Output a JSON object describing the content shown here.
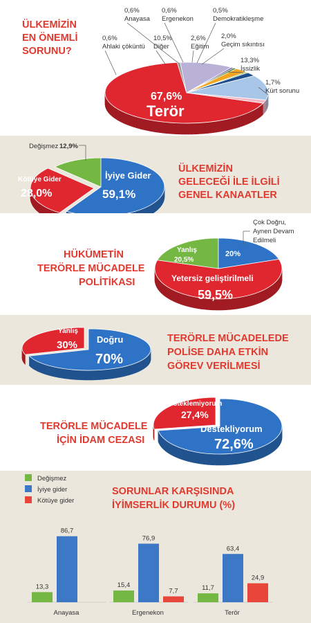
{
  "charts": {
    "c1": {
      "title": [
        "ÜLKEMİZİN",
        "EN ÖNEMLİ",
        "SORUNU?"
      ],
      "chart_data": {
        "type": "pie",
        "slices": [
          {
            "label": "Terör",
            "value": 67.6,
            "display": "67,6%",
            "color": "#e0262f"
          },
          {
            "label": "Ahlaki çöküntü",
            "value": 0.6,
            "display": "0,6%",
            "color": "#9a9a9a"
          },
          {
            "label": "Diğer",
            "value": 10.5,
            "display": "10,5%",
            "color": "#b9b2d6"
          },
          {
            "label": "Anayasa",
            "value": 0.6,
            "display": "0,6%",
            "color": "#7a62a8"
          },
          {
            "label": "Ergenekon",
            "value": 0.6,
            "display": "0,6%",
            "color": "#3a7d2f"
          },
          {
            "label": "Eğitim",
            "value": 2.6,
            "display": "2,6%",
            "color": "#f2a51f"
          },
          {
            "label": "Demokratikleşme",
            "value": 0.5,
            "display": "0,5%",
            "color": "#7bb043"
          },
          {
            "label": "Geçim sıkıntısı",
            "value": 2.0,
            "display": "2,0%",
            "color": "#1f4e8c"
          },
          {
            "label": "İşsizlik",
            "value": 13.3,
            "display": "13,3%",
            "color": "#a8c7e8"
          },
          {
            "label": "Kürt sorunu",
            "value": 1.7,
            "display": "1,7%",
            "color": "#f2b6c4"
          }
        ]
      }
    },
    "c2": {
      "title": [
        "ÜLKEMİZİN",
        "GELECEĞİ İLE İLGİLİ",
        "GENEL KANAATLER"
      ],
      "chart_data": {
        "type": "pie",
        "slices": [
          {
            "label": "İyiye Gider",
            "value": 59.1,
            "display": "59,1%",
            "color": "#2e73c6"
          },
          {
            "label": "Kötüye Gider",
            "value": 28.0,
            "display": "28,0%",
            "color": "#e0262f"
          },
          {
            "label": "Değişmez",
            "value": 12.9,
            "display": "12,9%",
            "color": "#74b843"
          }
        ]
      }
    },
    "c3": {
      "title": [
        "HÜKÜMETİN",
        "TERÖRLE MÜCADELE",
        "POLİTİKASI"
      ],
      "chart_data": {
        "type": "pie",
        "slices": [
          {
            "label": "Yetersiz geliştirilmeli",
            "value": 59.5,
            "display": "59,5%",
            "color": "#e0262f"
          },
          {
            "label": "Yanlış",
            "value": 20.5,
            "display": "20,5%",
            "color": "#74b843"
          },
          {
            "label": "Çok Doğru, Aynen Devam Edilmeli",
            "value": 20,
            "display": "20%",
            "color": "#2e73c6"
          }
        ]
      }
    },
    "c4": {
      "title": [
        "TERÖRLE MÜCADELEDE",
        "POLİSE DAHA ETKİN",
        "GÖREV VERİLMESİ"
      ],
      "chart_data": {
        "type": "pie",
        "slices": [
          {
            "label": "Doğru",
            "value": 70,
            "display": "70%",
            "color": "#2e73c6"
          },
          {
            "label": "Yanlış",
            "value": 30,
            "display": "30%",
            "color": "#e0262f"
          }
        ]
      }
    },
    "c5": {
      "title": [
        "TERÖRLE MÜCADELE",
        "İÇİN İDAM CEZASI"
      ],
      "chart_data": {
        "type": "pie",
        "slices": [
          {
            "label": "Destekliyorum",
            "value": 72.6,
            "display": "72,6%",
            "color": "#2e73c6"
          },
          {
            "label": "Desteklemiyorum",
            "value": 27.4,
            "display": "27,4%",
            "color": "#e0262f"
          }
        ]
      }
    },
    "c6": {
      "title": [
        "SORUNLAR KARŞISINDA",
        "İYİMSERLİK DURUMU (%)"
      ],
      "chart_data": {
        "type": "bar",
        "categories": [
          "Anayasa",
          "Ergenekon",
          "Terör"
        ],
        "series": [
          {
            "name": "Değişmez",
            "values": [
              13.3,
              15.4,
              11.7
            ],
            "display": [
              "13,3",
              "15,4",
              "11,7"
            ],
            "color": "#74b843"
          },
          {
            "name": "İyiye gider",
            "values": [
              86.7,
              76.9,
              63.4
            ],
            "display": [
              "86,7",
              "76,9",
              "63,4"
            ],
            "color": "#3d78c7"
          },
          {
            "name": "Kötüye gider",
            "values": [
              null,
              7.7,
              24.9
            ],
            "display": [
              "",
              "7,7",
              "24,9"
            ],
            "color": "#e8463a"
          }
        ],
        "ylim": [
          0,
          100
        ]
      }
    }
  }
}
